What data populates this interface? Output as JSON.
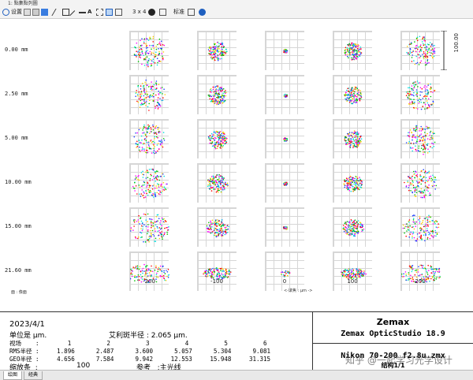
{
  "window": {
    "title": "1: 點集點列圖"
  },
  "toolbar": {
    "settings_label": "设置",
    "layout_label": "3 x 4",
    "standard_label": "标准"
  },
  "fields": [
    {
      "label": "0.00 mm"
    },
    {
      "label": "2.50 mm"
    },
    {
      "label": "5.00 mm"
    },
    {
      "label": "10.00 mm"
    },
    {
      "label": "15.00 mm"
    },
    {
      "label": "21.60 mm"
    }
  ],
  "focus_ticks": [
    "-200",
    "-100",
    "0",
    "100",
    "200"
  ],
  "axis_label": "<-聚焦 : μm ->",
  "scale_bar": {
    "label": "100.00"
  },
  "legend_text": "面 : 像面",
  "info": {
    "date": "2023/4/1",
    "units": "单位是 μm.",
    "airy": "艾利斑半径 : 2.065 μm.",
    "field_row": "视场    :        1          2          3          4          5          6",
    "rms_row": "RMS半径 :     1.896      2.487      3.600      5.057      5.304      9.081",
    "geo_row": "GEO半径 :     4.656      7.584      9.942     12.553     15.948     31.315",
    "scale_row_label": "缩放条  :",
    "scale_row_value": "100",
    "ref_label": "参考   :主光线",
    "brand": "Zemax",
    "product": "Zemax OpticStudio 18.9",
    "lens_file": "Nikon 70-200 f2.8u.zmx",
    "config": "结构1/1"
  },
  "tabs": [
    {
      "label": "绘图"
    },
    {
      "label": "经典"
    }
  ],
  "watermark": "知乎 @一起学习光学设计",
  "colors": {
    "accent_blue": "#1f5fbf",
    "series": [
      "#1f3fff",
      "#00c000",
      "#ff0000",
      "#ffcc00",
      "#00dddd",
      "#ff00ff"
    ]
  }
}
